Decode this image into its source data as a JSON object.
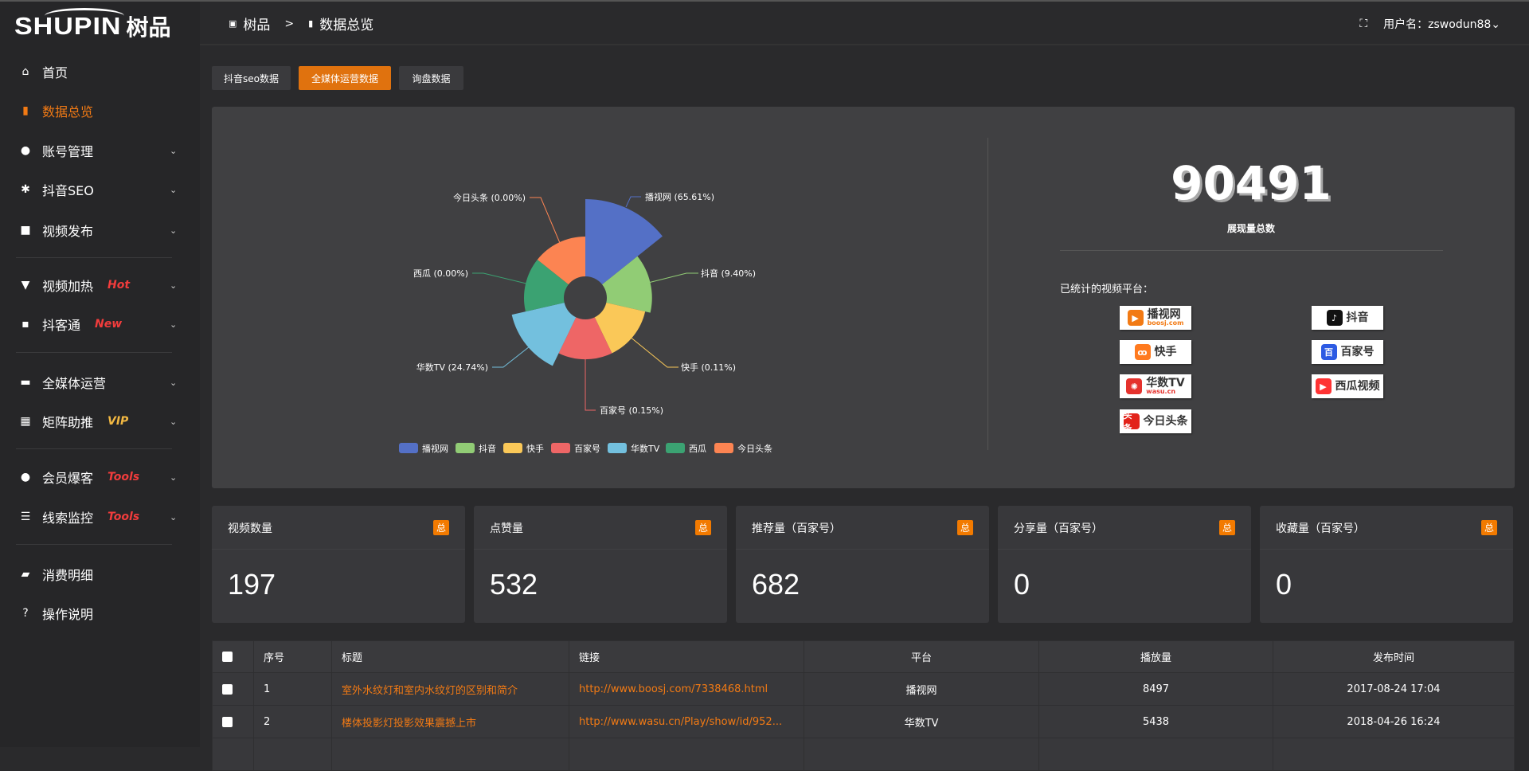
{
  "logo": {
    "en": "SHUPIN",
    "cn": "树品"
  },
  "sidebar": {
    "items": [
      {
        "label": "首页",
        "icon": "home-icon",
        "glyph": "⌂"
      },
      {
        "label": "数据总览",
        "icon": "bar-chart-icon",
        "glyph": "▮",
        "active": true
      },
      {
        "label": "账号管理",
        "icon": "user-icon",
        "glyph": "●",
        "chevron": true
      },
      {
        "label": "抖音SEO",
        "icon": "gear-icon",
        "glyph": "✱",
        "chevron": true
      },
      {
        "label": "视频发布",
        "icon": "camera-icon",
        "glyph": "■",
        "chevron": true
      },
      {
        "label": "视频加热",
        "icon": "heat-icon",
        "glyph": "▼",
        "badge": "Hot",
        "chevron": true
      },
      {
        "label": "抖客通",
        "icon": "chat-icon",
        "glyph": "▪",
        "badge": "New",
        "chevron": true
      },
      {
        "label": "全媒体运营",
        "icon": "monitor-icon",
        "glyph": "▬",
        "chevron": true
      },
      {
        "label": "矩阵助推",
        "icon": "grid-icon",
        "glyph": "▦",
        "badge": "VIP",
        "chevron": true
      },
      {
        "label": "会员爆客",
        "icon": "member-icon",
        "glyph": "●",
        "badge": "Tools",
        "chevron": true
      },
      {
        "label": "线索监控",
        "icon": "sliders-icon",
        "glyph": "☰",
        "badge": "Tools",
        "chevron": true
      },
      {
        "label": "消费明细",
        "icon": "wallet-icon",
        "glyph": "▰"
      },
      {
        "label": "操作说明",
        "icon": "help-icon",
        "glyph": "?"
      }
    ],
    "chevron": "⌄"
  },
  "header": {
    "crumb1": "树品",
    "crumb_sep": ">",
    "crumb2": "数据总览",
    "fullscreen": "⛶",
    "user": "用户名：zswodun88",
    "user_chevron": "⌄"
  },
  "tabs": [
    {
      "label": "抖音seo数据"
    },
    {
      "label": "全媒体运营数据",
      "active": true
    },
    {
      "label": "询盘数据"
    }
  ],
  "chart_data": {
    "type": "pie",
    "rose": "radius",
    "categories": [
      "播视网",
      "抖音",
      "快手",
      "百家号",
      "华数TV",
      "西瓜",
      "今日头条"
    ],
    "values": [
      65.61,
      9.4,
      0.11,
      0.15,
      24.74,
      0.0,
      0.0
    ],
    "labels": [
      "播视网 (65.61%)",
      "抖音 (9.40%)",
      "快手 (0.11%)",
      "百家号 (0.15%)",
      "华数TV (24.74%)",
      "西瓜 (0.00%)",
      "今日头条 (0.00%)"
    ],
    "colors": [
      "#5470c6",
      "#91cc75",
      "#fac858",
      "#ee6666",
      "#73c0de",
      "#3ba272",
      "#fc8452"
    ],
    "legend": "bottom"
  },
  "summary": {
    "total": "90491",
    "total_label": "展现量总数",
    "platforms_title": "已统计的视频平台：",
    "platforms": [
      {
        "name": "播视网",
        "sub": "boosj.com",
        "color": "#f27a14",
        "glyph": "▶"
      },
      {
        "name": "抖音",
        "color": "#111",
        "glyph": "♪"
      },
      {
        "name": "快手",
        "color": "#ff7a1f",
        "glyph": "ꝏ"
      },
      {
        "name": "百家号",
        "color": "#2d5be3",
        "glyph": "百"
      },
      {
        "name": "华数TV",
        "sub": "wasu.cn",
        "color": "#e5322d",
        "glyph": "✺"
      },
      {
        "name": "西瓜视频",
        "color": "#f33",
        "glyph": "▶"
      },
      {
        "name": "今日头条",
        "color": "#e2231a",
        "glyph": "头条"
      }
    ]
  },
  "cards": [
    {
      "title": "视频数量",
      "badge": "总",
      "value": "197"
    },
    {
      "title": "点赞量",
      "badge": "总",
      "value": "532"
    },
    {
      "title": "推荐量（百家号）",
      "badge": "总",
      "value": "682"
    },
    {
      "title": "分享量（百家号）",
      "badge": "总",
      "value": "0"
    },
    {
      "title": "收藏量（百家号）",
      "badge": "总",
      "value": "0"
    }
  ],
  "table": {
    "headers": [
      "序号",
      "标题",
      "链接",
      "平台",
      "播放量",
      "发布时间"
    ],
    "rows": [
      [
        "1",
        "室外水纹灯和室内水纹灯的区别和简介",
        "http://www.boosj.com/7338468.html",
        "播视网",
        "8497",
        "2017-08-24 17:04"
      ],
      [
        "2",
        "楼体投影灯投影效果震撼上市",
        "http://www.wasu.cn/Play/show/id/952...",
        "华数TV",
        "5438",
        "2018-04-26 16:24"
      ]
    ]
  }
}
